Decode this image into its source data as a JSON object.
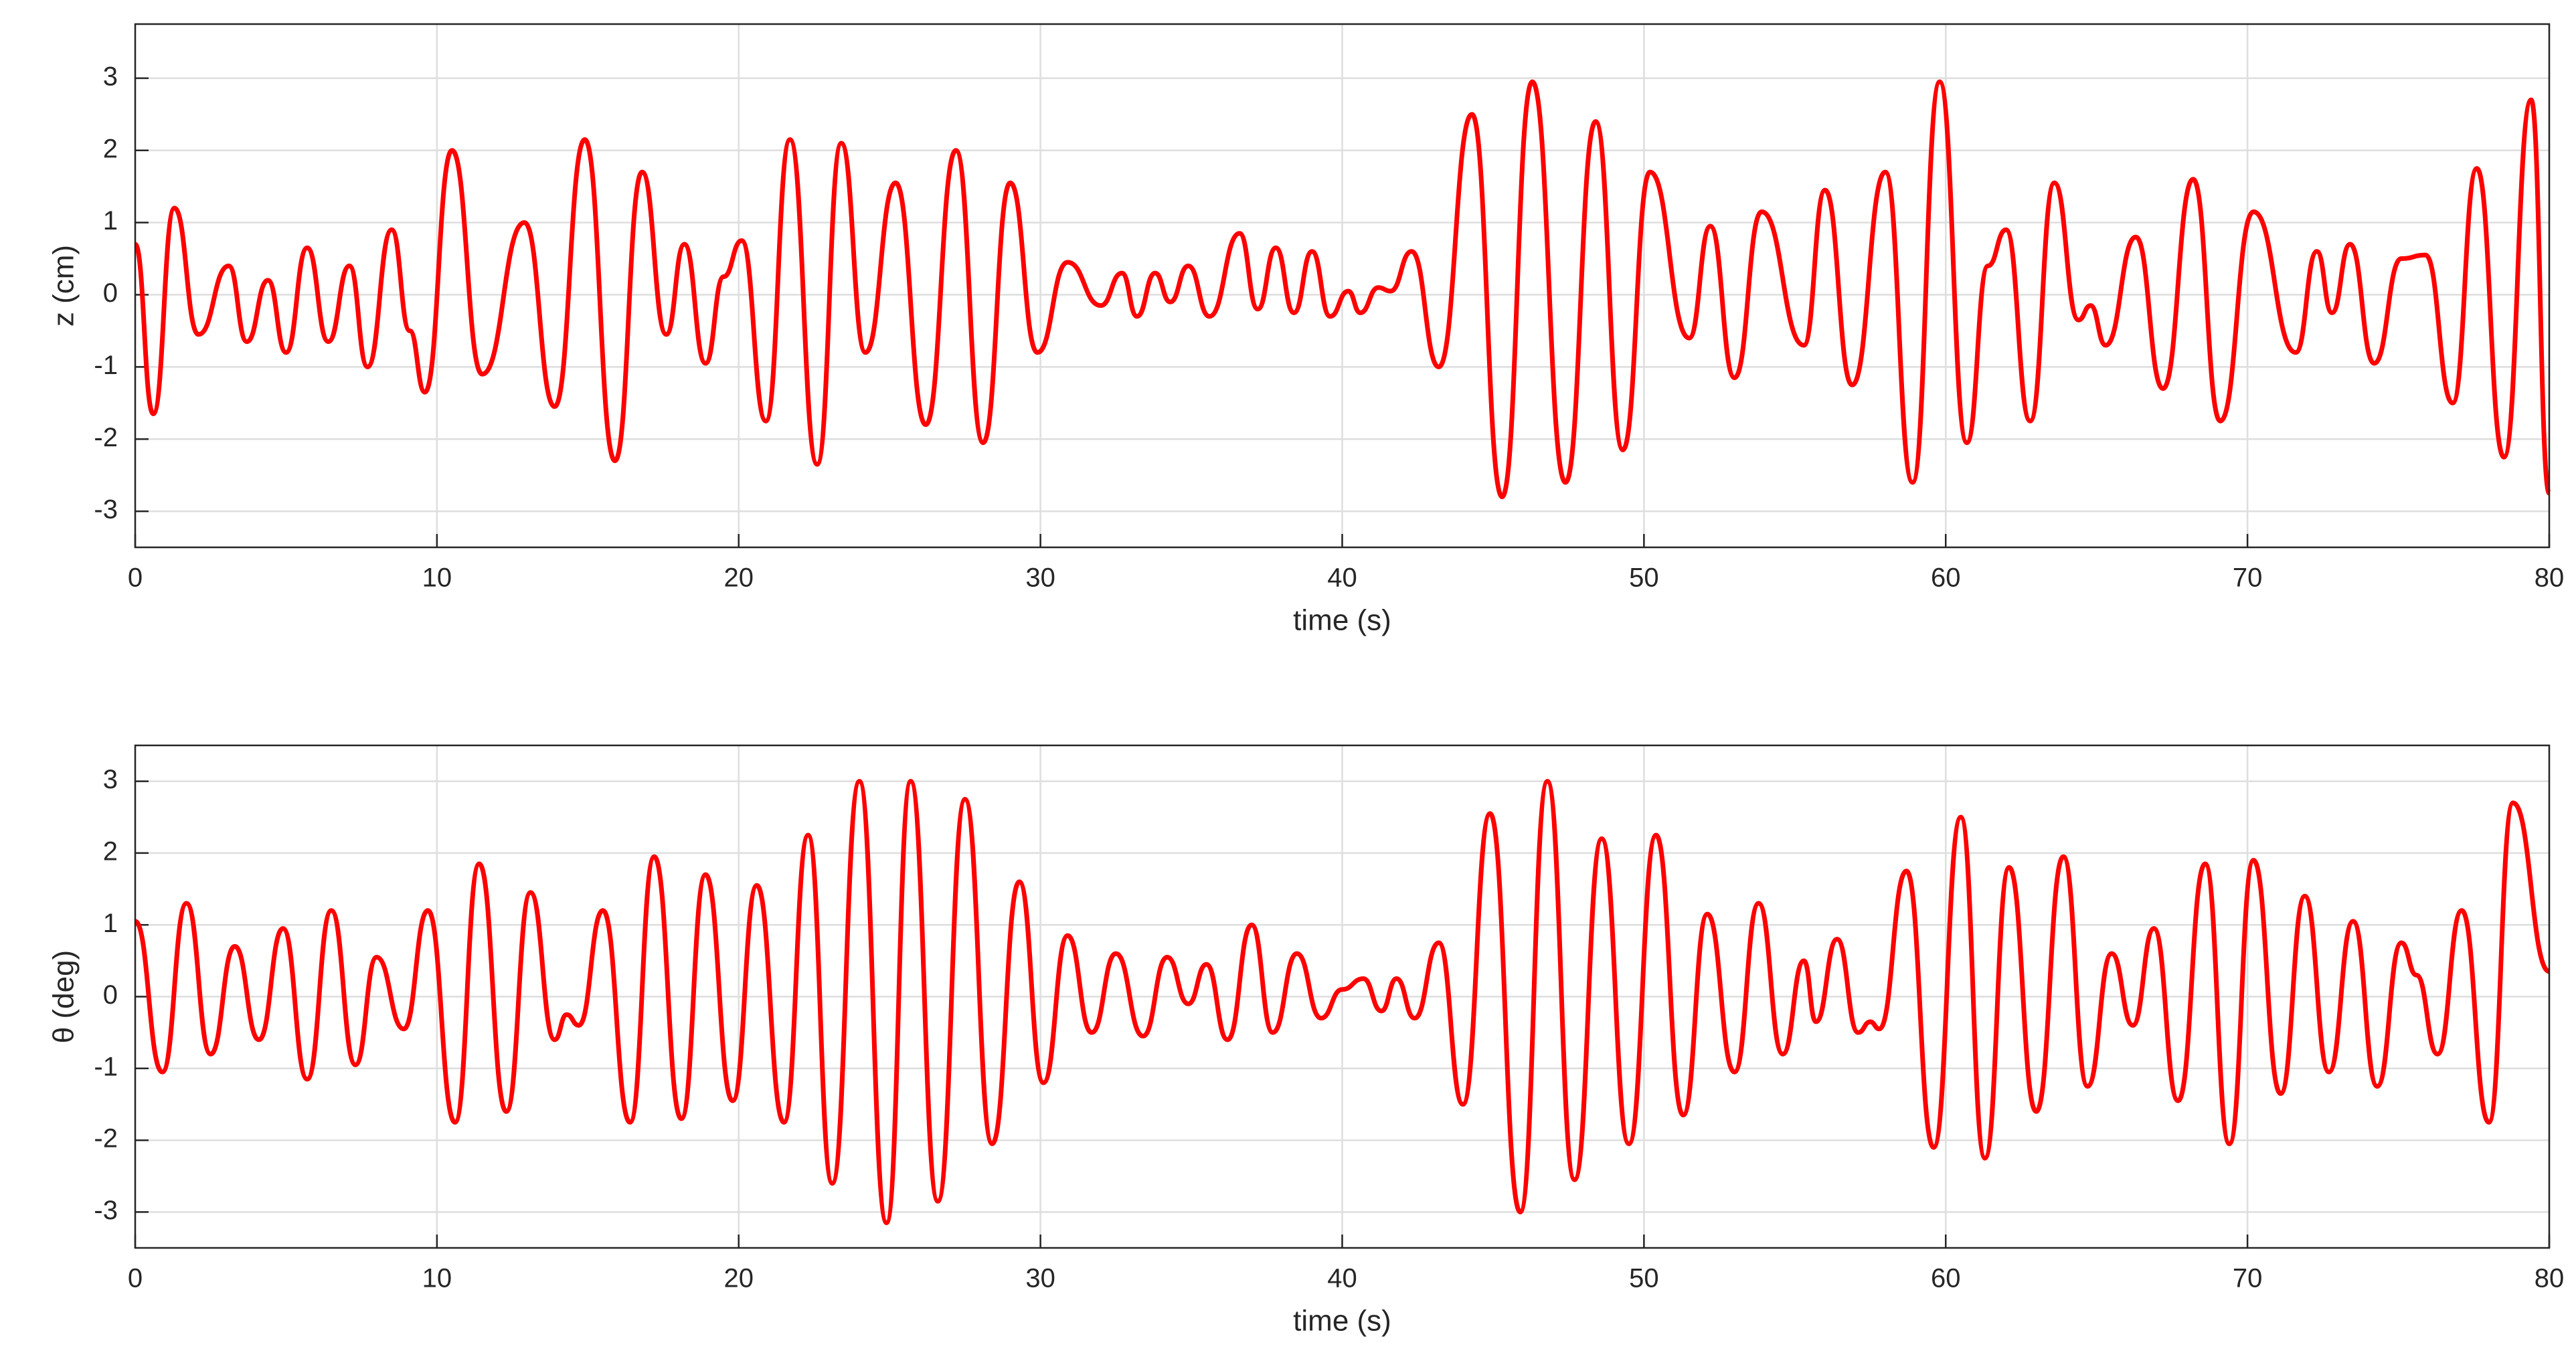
{
  "chart_data": [
    {
      "type": "line",
      "xlabel": "time (s)",
      "ylabel": "z (cm)",
      "color": "#ff0000",
      "grid": true,
      "xlim": [
        0,
        80
      ],
      "ylim": [
        -3.5,
        3.75
      ],
      "xticks": [
        0,
        10,
        20,
        30,
        40,
        50,
        60,
        70,
        80
      ],
      "yticks": [
        -3,
        -2,
        -1,
        0,
        1,
        2,
        3
      ],
      "x": [
        0,
        0.6,
        1.3,
        2.1,
        3.1,
        3.7,
        4.4,
        5.0,
        5.7,
        6.4,
        7.1,
        7.7,
        8.5,
        9.1,
        9.6,
        10.5,
        11.5,
        12.9,
        13.9,
        14.9,
        15.9,
        16.8,
        17.6,
        18.2,
        18.9,
        19.5,
        20.1,
        20.9,
        21.7,
        22.6,
        23.4,
        24.2,
        25.2,
        26.2,
        27.2,
        28.1,
        29.0,
        29.9,
        30.9,
        32.0,
        32.7,
        33.2,
        33.8,
        34.3,
        34.9,
        35.6,
        36.6,
        37.2,
        37.8,
        38.4,
        39.0,
        39.6,
        40.2,
        40.6,
        41.2,
        41.6,
        42.3,
        43.2,
        44.3,
        45.3,
        46.3,
        47.4,
        48.4,
        49.3,
        50.2,
        51.5,
        52.2,
        53.0,
        53.9,
        55.3,
        56.0,
        56.9,
        58.0,
        58.9,
        59.8,
        60.7,
        61.4,
        62.0,
        62.8,
        63.6,
        64.4,
        64.8,
        65.3,
        66.3,
        67.2,
        68.2,
        69.1,
        70.2,
        71.6,
        72.3,
        72.8,
        73.4,
        74.2,
        75.1,
        75.9,
        76.8,
        77.6,
        78.5,
        79.4,
        80.0
      ],
      "values": [
        0.7,
        -1.65,
        1.2,
        -0.55,
        0.4,
        -0.65,
        0.2,
        -0.8,
        0.65,
        -0.65,
        0.4,
        -1.0,
        0.9,
        -0.5,
        -1.35,
        2.0,
        -1.1,
        1.0,
        -1.55,
        2.15,
        -2.3,
        1.7,
        -0.55,
        0.7,
        -0.95,
        0.25,
        0.75,
        -1.75,
        2.15,
        -2.35,
        2.1,
        -0.8,
        1.55,
        -1.8,
        2.0,
        -2.05,
        1.55,
        -0.8,
        0.45,
        -0.15,
        0.3,
        -0.3,
        0.3,
        -0.1,
        0.4,
        -0.3,
        0.85,
        -0.2,
        0.65,
        -0.25,
        0.6,
        -0.3,
        0.05,
        -0.25,
        0.1,
        0.05,
        0.6,
        -1.0,
        2.5,
        -2.8,
        2.95,
        -2.6,
        2.4,
        -2.15,
        1.7,
        -0.6,
        0.95,
        -1.15,
        1.15,
        -0.7,
        1.45,
        -1.25,
        1.7,
        -2.6,
        2.95,
        -2.05,
        0.4,
        0.9,
        -1.75,
        1.55,
        -0.35,
        -0.15,
        -0.7,
        0.8,
        -1.3,
        1.6,
        -1.75,
        1.15,
        -0.8,
        0.6,
        -0.25,
        0.7,
        -0.95,
        0.5,
        0.55,
        -1.5,
        1.75,
        -2.25,
        2.7,
        -2.75
      ]
    },
    {
      "type": "line",
      "xlabel": "time (s)",
      "ylabel": "θ (deg)",
      "color": "#ff0000",
      "grid": true,
      "xlim": [
        0,
        80
      ],
      "ylim": [
        -3.5,
        3.5
      ],
      "xticks": [
        0,
        10,
        20,
        30,
        40,
        50,
        60,
        70,
        80
      ],
      "yticks": [
        -3,
        -2,
        -1,
        0,
        1,
        2,
        3
      ],
      "x": [
        0,
        0.9,
        1.7,
        2.5,
        3.3,
        4.1,
        4.9,
        5.7,
        6.5,
        7.3,
        8.0,
        8.9,
        9.7,
        10.6,
        11.4,
        12.3,
        13.1,
        13.9,
        14.3,
        14.7,
        15.5,
        16.4,
        17.2,
        18.1,
        18.9,
        19.8,
        20.6,
        21.5,
        22.3,
        23.1,
        24.0,
        24.9,
        25.7,
        26.6,
        27.5,
        28.4,
        29.3,
        30.1,
        30.9,
        31.7,
        32.5,
        33.4,
        34.2,
        34.9,
        35.5,
        36.2,
        37.0,
        37.7,
        38.5,
        39.3,
        40.0,
        40.7,
        41.3,
        41.8,
        42.4,
        43.2,
        44.0,
        44.9,
        45.9,
        46.8,
        47.7,
        48.6,
        49.5,
        50.4,
        51.3,
        52.1,
        53.0,
        53.8,
        54.6,
        55.3,
        55.7,
        56.4,
        57.1,
        57.5,
        57.8,
        58.7,
        59.6,
        60.5,
        61.3,
        62.1,
        63.0,
        63.9,
        64.7,
        65.5,
        66.2,
        66.9,
        67.7,
        68.6,
        69.4,
        70.2,
        71.1,
        71.9,
        72.7,
        73.5,
        74.3,
        75.1,
        75.6,
        76.3,
        77.1,
        78.0,
        78.8,
        80.0
      ],
      "values": [
        1.05,
        -1.05,
        1.3,
        -0.8,
        0.7,
        -0.6,
        0.95,
        -1.15,
        1.2,
        -0.95,
        0.55,
        -0.45,
        1.2,
        -1.75,
        1.85,
        -1.6,
        1.45,
        -0.6,
        -0.25,
        -0.4,
        1.2,
        -1.75,
        1.95,
        -1.7,
        1.7,
        -1.45,
        1.55,
        -1.75,
        2.25,
        -2.6,
        3.0,
        -3.15,
        3.0,
        -2.85,
        2.75,
        -2.05,
        1.6,
        -1.2,
        0.85,
        -0.5,
        0.6,
        -0.55,
        0.55,
        -0.1,
        0.45,
        -0.6,
        1.0,
        -0.5,
        0.6,
        -0.3,
        0.1,
        0.25,
        -0.2,
        0.25,
        -0.3,
        0.75,
        -1.5,
        2.55,
        -3.0,
        3.0,
        -2.55,
        2.2,
        -2.05,
        2.25,
        -1.65,
        1.15,
        -1.05,
        1.3,
        -0.8,
        0.5,
        -0.35,
        0.8,
        -0.5,
        -0.35,
        -0.45,
        1.75,
        -2.1,
        2.5,
        -2.25,
        1.8,
        -1.6,
        1.95,
        -1.25,
        0.6,
        -0.4,
        0.95,
        -1.45,
        1.85,
        -2.05,
        1.9,
        -1.35,
        1.4,
        -1.05,
        1.05,
        -1.25,
        0.75,
        0.3,
        -0.8,
        1.2,
        -1.75,
        2.7,
        0.35
      ]
    }
  ]
}
